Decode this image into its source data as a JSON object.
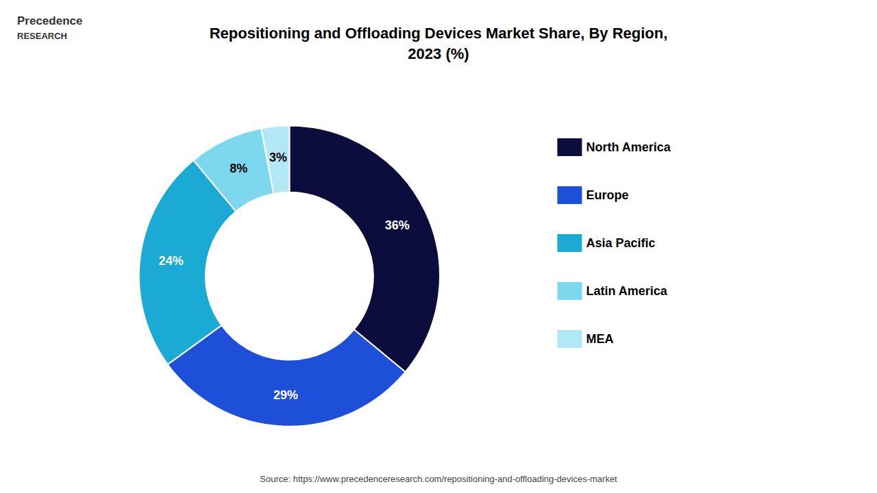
{
  "chart_data": {
    "type": "pie",
    "title": "Repositioning and Offloading Devices Market Share, By Region,\n2023 (%)",
    "categories": [
      "North America",
      "Europe",
      "Asia Pacific",
      "Latin America",
      "MEA"
    ],
    "values": [
      36,
      29,
      24,
      8,
      3
    ],
    "value_labels": [
      "36%",
      "29%",
      "24%",
      "8%",
      "3%"
    ],
    "colors": [
      "#0d0d3d",
      "#1e4fd8",
      "#1baad4",
      "#7dd8ef",
      "#b2e8f5"
    ],
    "data_labels": true,
    "legend": "right",
    "annotations": [
      "Precedence",
      "RESEARCH",
      "Source: https://www.precedenceresearch.com/repositioning-and-offloading-devices-market"
    ]
  }
}
